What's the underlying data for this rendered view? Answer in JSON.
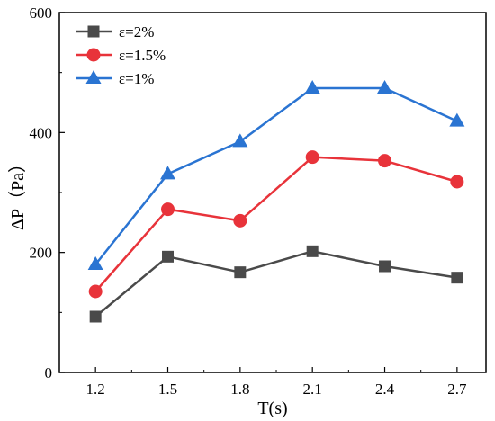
{
  "chart_data": {
    "type": "line",
    "title": "",
    "xlabel": "T(s)",
    "ylabel": "ΔP（Pa）",
    "x": [
      1.2,
      1.5,
      1.8,
      2.1,
      2.4,
      2.7
    ],
    "x_tick_labels": [
      "1.2",
      "1.5",
      "1.8",
      "2.1",
      "2.4",
      "2.7"
    ],
    "xlim": [
      1.05,
      2.82
    ],
    "ylim": [
      0,
      600
    ],
    "y_ticks": [
      0,
      200,
      400,
      600
    ],
    "y_tick_labels": [
      "0",
      "200",
      "400",
      "600"
    ],
    "grid": false,
    "legend_position": "top-left",
    "series": [
      {
        "name": "ε=2%",
        "color": "#4a4a4a",
        "marker": "square",
        "values": [
          93,
          193,
          167,
          202,
          177,
          158
        ]
      },
      {
        "name": "ε=1.5%",
        "color": "#e8333a",
        "marker": "circle",
        "values": [
          135,
          272,
          253,
          359,
          353,
          318
        ]
      },
      {
        "name": "ε=1%",
        "color": "#2a74d2",
        "marker": "triangle",
        "values": [
          180,
          331,
          385,
          474,
          474,
          419
        ]
      }
    ]
  }
}
